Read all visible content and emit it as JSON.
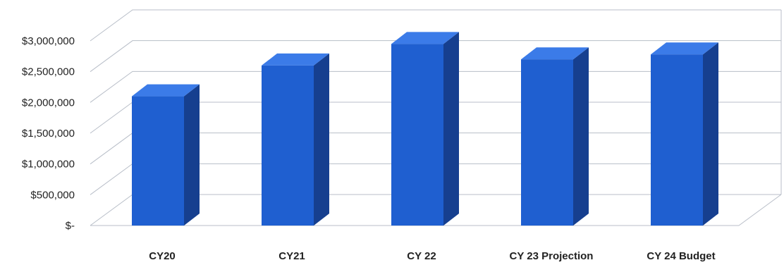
{
  "chart_data": {
    "type": "bar",
    "title": "",
    "xlabel": "",
    "ylabel": "",
    "categories": [
      "CY20",
      "CY21",
      "CY 22",
      "CY 23 Projection",
      "CY 24 Budget"
    ],
    "values": [
      2100000,
      2600000,
      2950000,
      2700000,
      2780000
    ],
    "ylim": [
      0,
      3000000
    ],
    "y_ticks": [
      0,
      500000,
      1000000,
      1500000,
      2000000,
      2500000,
      3000000
    ],
    "y_tick_labels": [
      "$-",
      "$500,000",
      "$1,000,000",
      "$1,500,000",
      "$2,000,000",
      "$2,500,000",
      "$3,000,000"
    ],
    "grid": true,
    "style": "3d-column",
    "colors": {
      "bar_front": "#1f5fd0",
      "bar_side": "#163f8f",
      "bar_top": "#3b7be8",
      "grid": "#b8bec8",
      "axis_text": "#222222"
    }
  }
}
